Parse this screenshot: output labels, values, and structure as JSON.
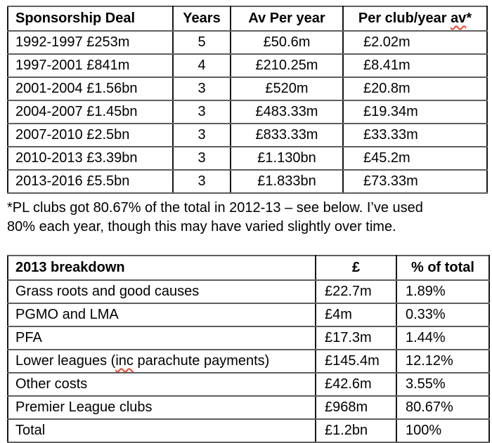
{
  "colors": {
    "text": "#000000",
    "spellcheck_underline": "#e8472e",
    "table_border": "#0d0d0d"
  },
  "sponsorship_table": {
    "headers": [
      "Sponsorship Deal",
      "Years",
      "Av Per year",
      {
        "pre": "Per club/year ",
        "wavy": "av",
        "post": "*"
      }
    ],
    "rows": [
      [
        "1992-1997 £253m",
        "5",
        "£50.6m",
        "£2.02m"
      ],
      [
        "1997-2001 £841m",
        "4",
        "£210.25m",
        "£8.41m"
      ],
      [
        "2001-2004 £1.56bn",
        "3",
        "£520m",
        "£20.8m"
      ],
      [
        "2004-2007 £1.45bn",
        "3",
        "£483.33m",
        "£19.34m"
      ],
      [
        "2007-2010 £2.5bn",
        "3",
        "£833.33m",
        "£33.33m"
      ],
      [
        "2010-2013 £3.39bn",
        "3",
        "£1.130bn",
        "£45.2m"
      ],
      [
        "2013-2016 £5.5bn",
        "3",
        "£1.833bn",
        "£73.33m"
      ]
    ]
  },
  "footnote": {
    "line1": "*PL clubs got 80.67% of the total in 2012-13 – see below. I’ve used",
    "line2": "80% each year, though this may have varied slightly over time."
  },
  "breakdown_table": {
    "headers": [
      "2013 breakdown",
      "£",
      "% of total"
    ],
    "rows": [
      [
        "Grass roots and good causes",
        "£22.7m",
        "1.89%"
      ],
      [
        "PGMO and LMA",
        "£4m",
        "0.33%"
      ],
      [
        "PFA",
        "£17.3m",
        "1.44%"
      ],
      [
        {
          "pre": "Lower leagues (",
          "wavy": "inc",
          "post": " parachute payments)"
        },
        "£145.4m",
        "12.12%"
      ],
      [
        "Other costs",
        "£42.6m",
        "3.55%"
      ],
      [
        "Premier League clubs",
        "£968m",
        "80.67%"
      ],
      [
        "Total",
        "£1.2bn",
        "100%"
      ]
    ]
  }
}
